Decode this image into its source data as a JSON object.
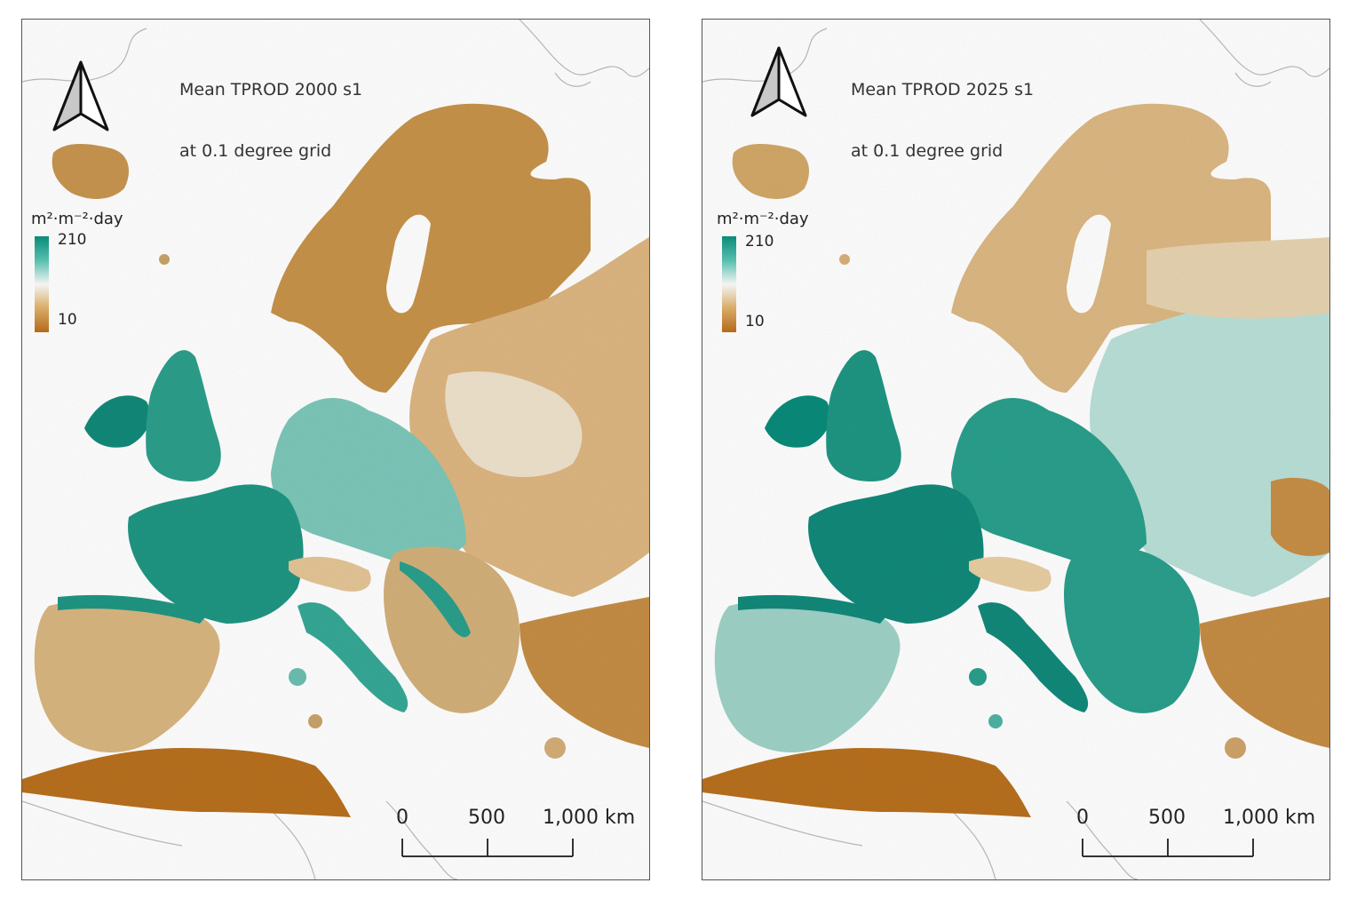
{
  "panels": [
    {
      "title_line1": "Mean TPROD 2000 s1",
      "title_line2": "at 0.1 degree grid",
      "legend": {
        "unit": "m²·m⁻²·day",
        "max_label": "210",
        "min_label": "10"
      },
      "scale_bar": {
        "labels": [
          "0",
          "500",
          "1,000 km"
        ]
      },
      "north_arrow": "north-arrow-icon"
    },
    {
      "title_line1": "Mean TPROD 2025 s1",
      "title_line2": "at 0.1 degree grid",
      "legend": {
        "unit": "m²·m⁻²·day",
        "max_label": "210",
        "min_label": "10"
      },
      "scale_bar": {
        "labels": [
          "0",
          "500",
          "1,000 km"
        ]
      },
      "north_arrow": "north-arrow-icon"
    }
  ],
  "colors": {
    "high": "#0a8b7a",
    "mid": "#f4f4f4",
    "low": "#b56a1a",
    "frame": "#555555"
  }
}
